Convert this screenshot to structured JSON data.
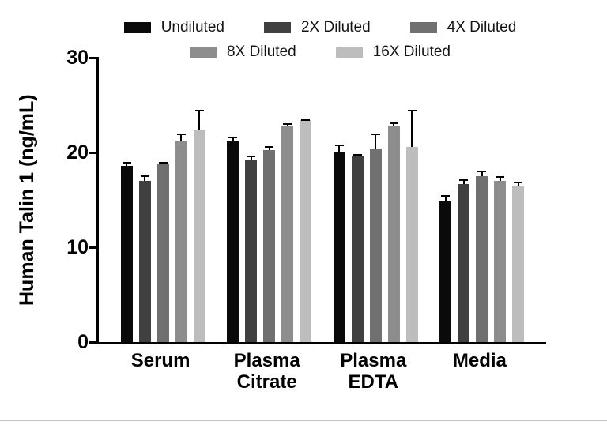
{
  "figure": {
    "background": "#ffffff"
  },
  "chart_data": {
    "type": "bar",
    "title": "",
    "ylabel": "Human Talin 1 (ng/mL)",
    "xlabel": "",
    "ylim": [
      0,
      30
    ],
    "yticks": [
      0,
      10,
      20,
      30
    ],
    "grid": false,
    "legend_position": "top",
    "axis_color": "#000000",
    "error_bar_color": "#000000",
    "categories": [
      [
        "Serum"
      ],
      [
        "Plasma",
        "Citrate"
      ],
      [
        "Plasma",
        "EDTA"
      ],
      [
        "Media"
      ]
    ],
    "series": [
      {
        "name": "Undiluted",
        "color": "#0a0a0a",
        "values": [
          18.6,
          21.2,
          20.1,
          14.9
        ],
        "errors": [
          0.4,
          0.5,
          0.7,
          0.6
        ]
      },
      {
        "name": "2X Diluted",
        "color": "#404040",
        "values": [
          17.0,
          19.25,
          19.6,
          16.7
        ],
        "errors": [
          0.6,
          0.4,
          0.2,
          0.5
        ]
      },
      {
        "name": "4X Diluted",
        "color": "#707070",
        "values": [
          18.8,
          20.25,
          20.4,
          17.5
        ],
        "errors": [
          0.2,
          0.4,
          1.6,
          0.6
        ]
      },
      {
        "name": "8X Diluted",
        "color": "#8d8d8d",
        "values": [
          21.2,
          22.75,
          22.75,
          17.0
        ],
        "errors": [
          0.8,
          0.3,
          0.4,
          0.5
        ]
      },
      {
        "name": "16X Diluted",
        "color": "#bdbdbd",
        "values": [
          22.3,
          23.4,
          20.6,
          16.5
        ],
        "errors": [
          2.2,
          0.1,
          3.9,
          0.4
        ]
      }
    ]
  }
}
